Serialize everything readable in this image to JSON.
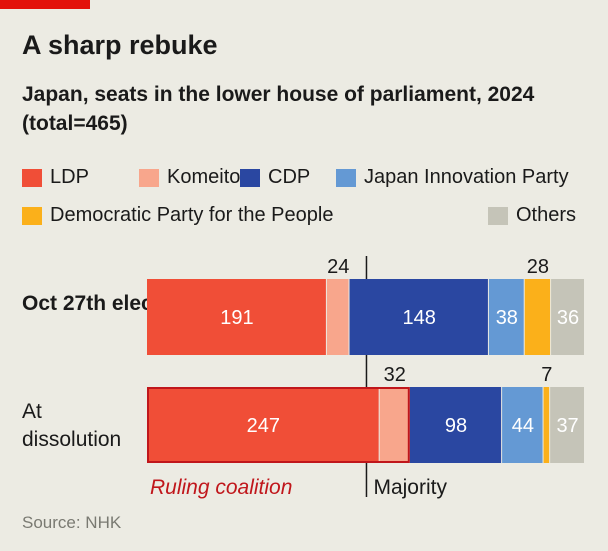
{
  "chart_data": {
    "type": "bar",
    "stacked": true,
    "orientation": "horizontal",
    "title": "A sharp rebuke",
    "subtitle": "Japan, seats in the lower house of parliament, 2024 (total=465)",
    "total": 465,
    "majority": 233,
    "majority_label": "Majority",
    "coalition_label": "Ruling coalition",
    "categories": [
      "Oct 27th election",
      "At dissolution"
    ],
    "series": [
      {
        "name": "LDP",
        "color": "#f04e37",
        "values": [
          191,
          247
        ]
      },
      {
        "name": "Komeito",
        "color": "#f8a68c",
        "values": [
          24,
          32
        ]
      },
      {
        "name": "CDP",
        "color": "#2a47a1",
        "values": [
          148,
          98
        ]
      },
      {
        "name": "Japan Innovation Party",
        "color": "#6499d4",
        "values": [
          38,
          44
        ]
      },
      {
        "name": "Democratic Party for the People",
        "color": "#fbb01a",
        "values": [
          28,
          7
        ]
      },
      {
        "name": "Others",
        "color": "#c5c4b8",
        "values": [
          36,
          37
        ]
      }
    ],
    "source": "Source: NHK"
  }
}
